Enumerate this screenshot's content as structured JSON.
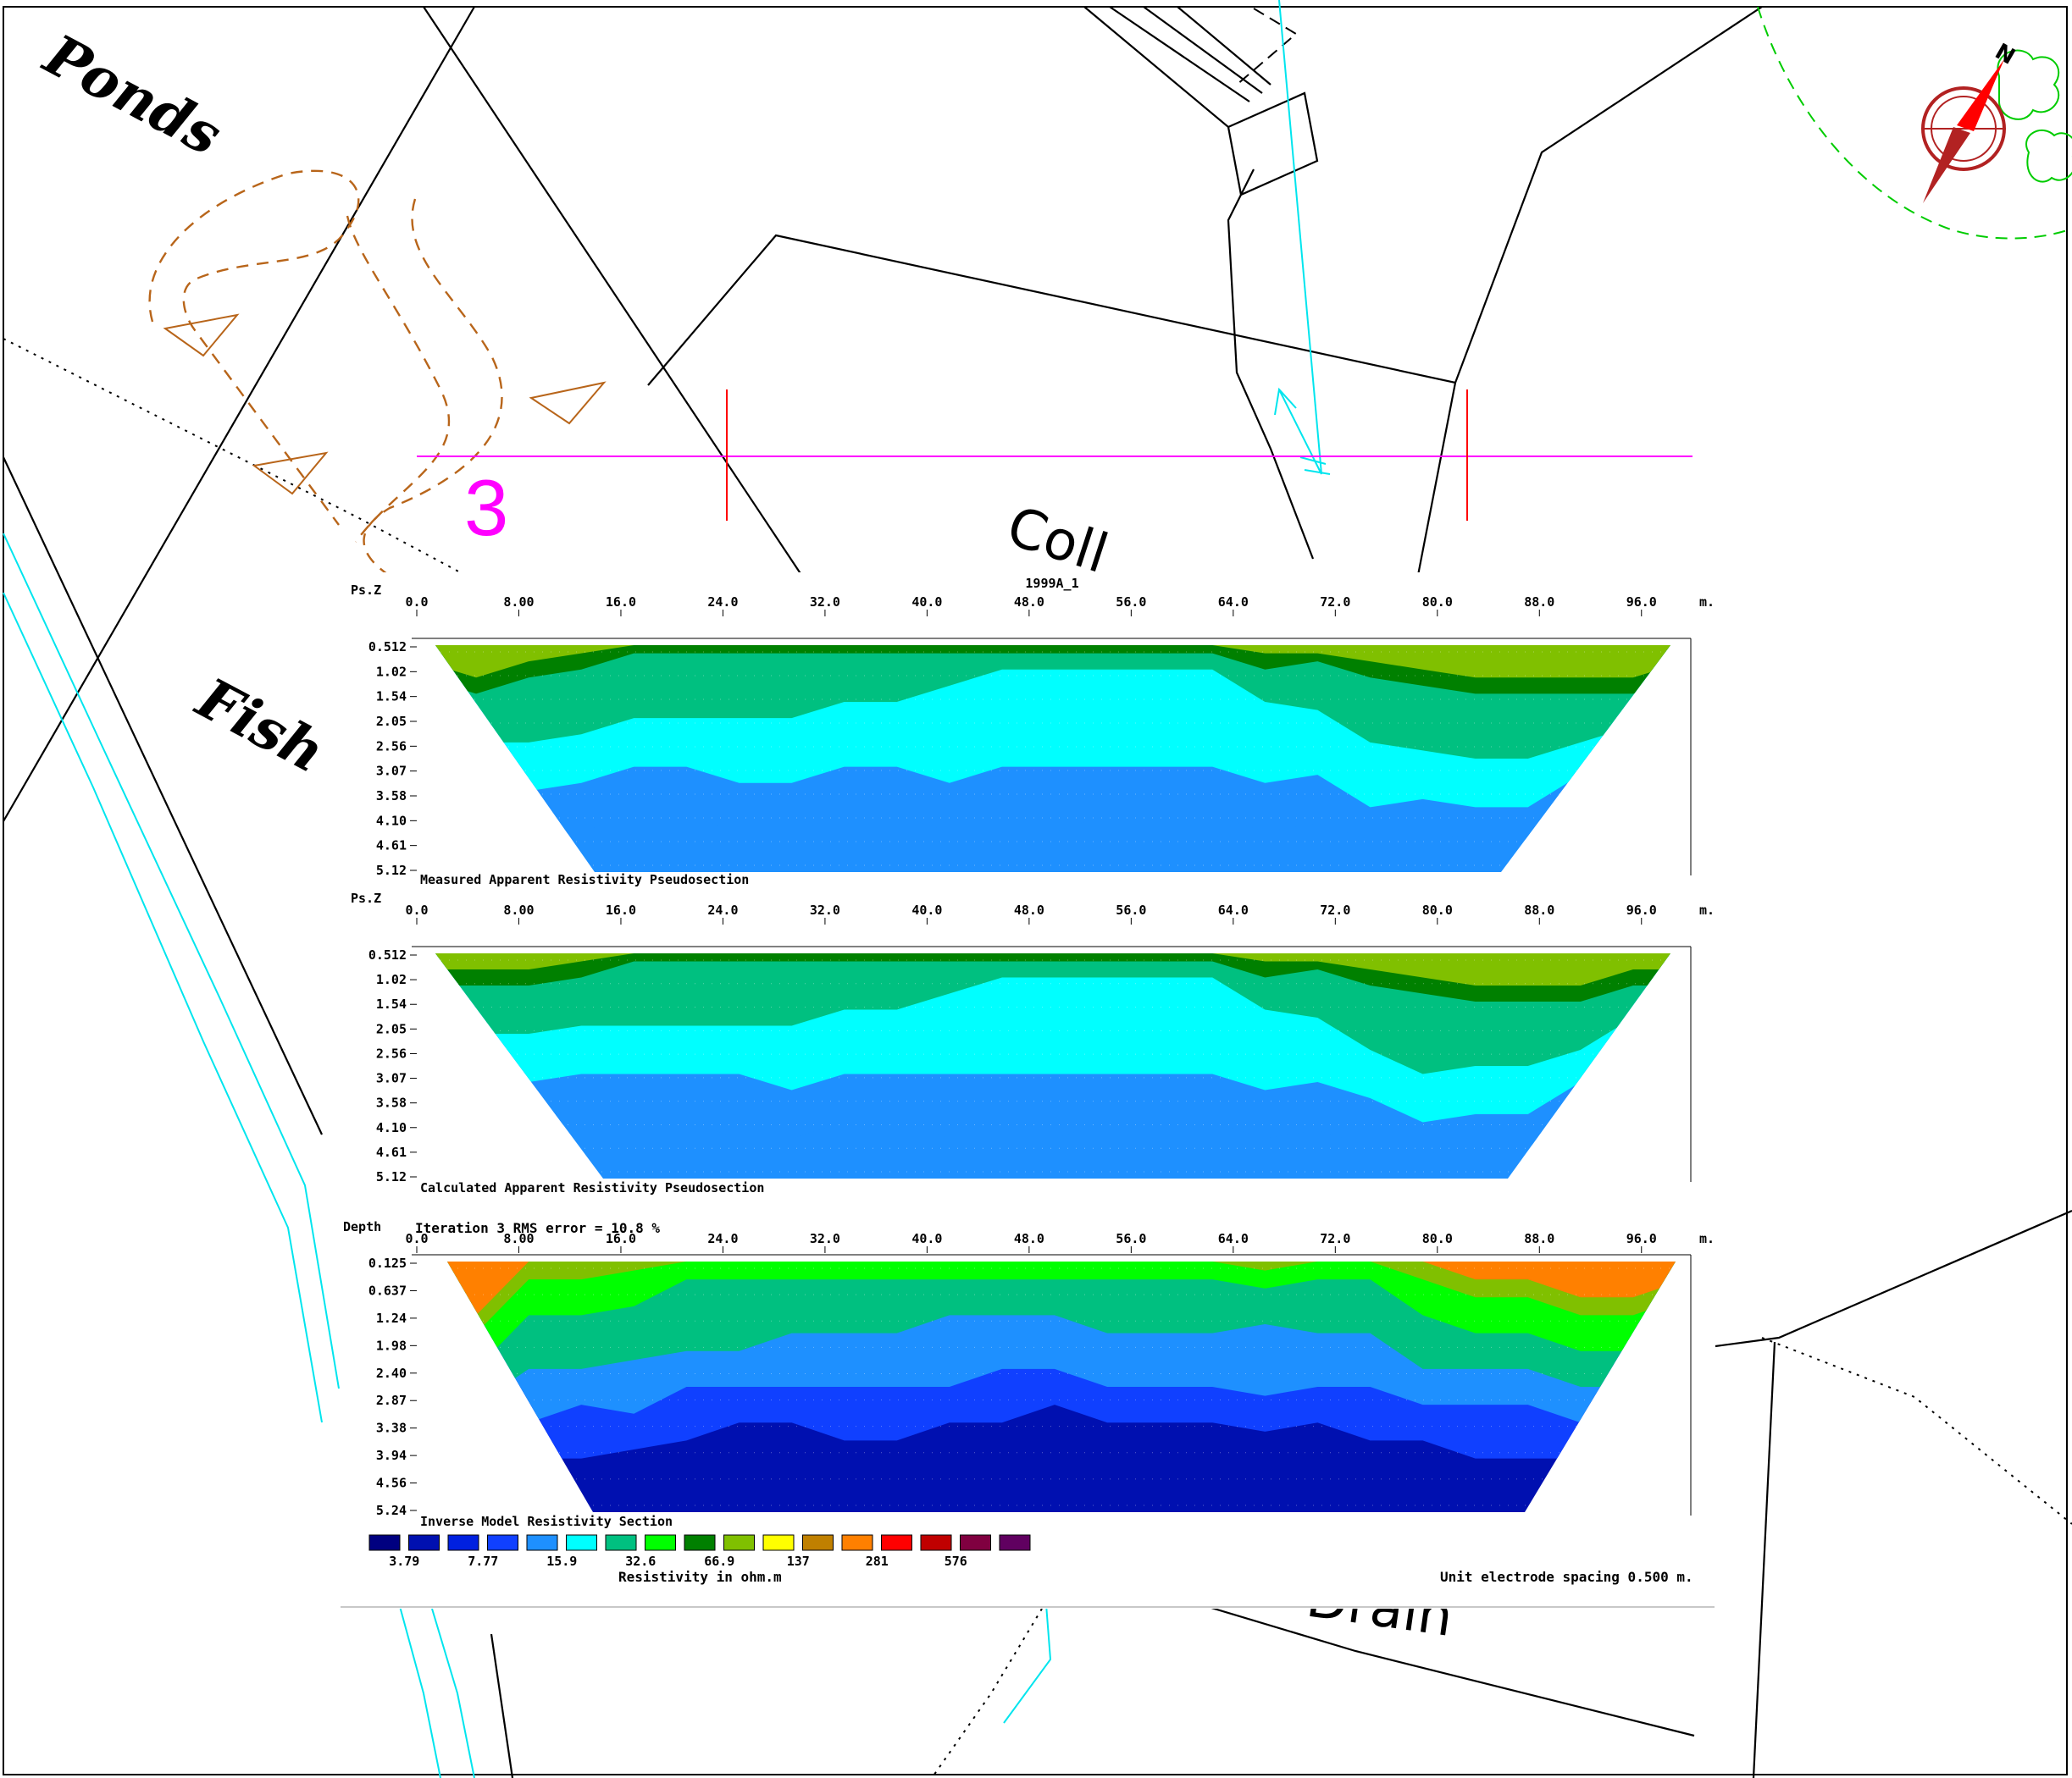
{
  "map": {
    "labels": {
      "ponds": "Ponds",
      "fish": "Fish",
      "coll": "Coll",
      "drain": "Drain",
      "line_number": "3",
      "north": "N"
    },
    "colors": {
      "traverse": "#ff00ff",
      "marker": "#ff0000",
      "water": "#00e5ee",
      "earthwork": "#b8651a",
      "tree": "#00cc00",
      "line": "#000000"
    }
  },
  "chart_data": {
    "type": "heatmap",
    "title": "1999A_1",
    "unit_note": "m.",
    "x_ticks": [
      "0.0",
      "8.00",
      "16.0",
      "24.0",
      "32.0",
      "40.0",
      "48.0",
      "56.0",
      "64.0",
      "72.0",
      "80.0",
      "88.0",
      "96.0"
    ],
    "xlim": [
      0,
      100
    ],
    "electrode_spacing": "Unit electrode spacing 0.500 m.",
    "sections": [
      {
        "name": "measured",
        "title": "Measured Apparent Resistivity Pseudosection",
        "axis_label": "Ps.Z",
        "depth_ticks": [
          "0.512",
          "1.02",
          "1.54",
          "2.05",
          "2.56",
          "3.07",
          "3.58",
          "4.10",
          "4.61",
          "5.12"
        ],
        "bands_from_top": [
          {
            "color_index": 9,
            "thickness": [
              1,
              2,
              1,
              0.5,
              0,
              0,
              0,
              0,
              0,
              0,
              0,
              0,
              0,
              0,
              0,
              0,
              0.5,
              0.5,
              1,
              1.5,
              2,
              2,
              2,
              2,
              1
            ]
          },
          {
            "color_index": 8,
            "thickness": [
              1,
              1,
              1,
              1,
              0.5,
              0.5,
              0.5,
              0.5,
              0.5,
              0.5,
              0.5,
              0.5,
              0.5,
              0.5,
              0.5,
              0.5,
              1,
              0.5,
              1,
              1,
              1,
              1,
              1,
              1,
              1
            ]
          },
          {
            "color_index": 6,
            "thickness": [
              2,
              3,
              4,
              4,
              4,
              4,
              4,
              4,
              3,
              3,
              2,
              1,
              1,
              1,
              1,
              1,
              2,
              3,
              4,
              4,
              4,
              4,
              3,
              2,
              2
            ]
          },
          {
            "color_index": 5,
            "thickness": [
              2,
              3,
              3,
              3,
              3,
              3,
              4,
              4,
              4,
              4,
              6,
              6,
              6,
              6,
              6,
              6,
              5,
              4,
              4,
              3,
              3,
              3,
              2,
              2,
              2
            ]
          },
          {
            "color_index": 4,
            "thickness": [
              3,
              3,
              3,
              3,
              3,
              3,
              3,
              3,
              3,
              3,
              3,
              4,
              4,
              3,
              3,
              3,
              3,
              3,
              2,
              2,
              2,
              2,
              2,
              2,
              3
            ]
          }
        ]
      },
      {
        "name": "calculated",
        "title": "Calculated Apparent Resistivity Pseudosection",
        "axis_label": "Ps.Z",
        "depth_ticks": [
          "0.512",
          "1.02",
          "1.54",
          "2.05",
          "2.56",
          "3.07",
          "3.58",
          "4.10",
          "4.61",
          "5.12"
        ],
        "bands_from_top": [
          {
            "color_index": 9,
            "thickness": [
              1,
              1,
              1,
              0.5,
              0,
              0,
              0,
              0,
              0,
              0,
              0,
              0,
              0,
              0,
              0,
              0,
              0.5,
              0.5,
              1,
              1.5,
              2,
              2,
              2,
              1,
              1
            ]
          },
          {
            "color_index": 8,
            "thickness": [
              1,
              1,
              1,
              1,
              0.5,
              0.5,
              0.5,
              0.5,
              0.5,
              0.5,
              0.5,
              0.5,
              0.5,
              0.5,
              0.5,
              0.5,
              1,
              0.5,
              1,
              1,
              1,
              1,
              1,
              1,
              1
            ]
          },
          {
            "color_index": 6,
            "thickness": [
              2,
              3,
              3,
              3,
              4,
              4,
              4,
              4,
              3,
              3,
              2,
              1,
              1,
              1,
              1,
              1,
              2,
              3,
              4,
              5,
              4,
              4,
              3,
              2,
              2
            ]
          },
          {
            "color_index": 5,
            "thickness": [
              2,
              2,
              3,
              3,
              3,
              3,
              3,
              4,
              4,
              4,
              5,
              6,
              6,
              6,
              6,
              6,
              5,
              4,
              3,
              3,
              3,
              3,
              2,
              2,
              2
            ]
          },
          {
            "color_index": 4,
            "thickness": [
              4,
              3,
              3,
              3,
              3,
              3,
              4,
              3,
              3,
              3,
              4,
              4,
              4,
              3,
              3,
              3,
              3,
              3,
              3,
              2,
              2,
              2,
              3,
              3,
              3
            ]
          }
        ]
      },
      {
        "name": "inverse",
        "title": "Inverse Model Resistivity Section",
        "axis_label": "Depth",
        "iteration_text": "Iteration 3 RMS error = 10.8 %",
        "depth_ticks": [
          "0.125",
          "0.637",
          "1.24",
          "1.98",
          "2.40",
          "2.87",
          "3.38",
          "3.94",
          "4.56",
          "5.24"
        ],
        "bands_from_top": [
          {
            "color_index": 12,
            "thickness": [
              1,
              3,
              0,
              0,
              0,
              0,
              0,
              0,
              0,
              0,
              0,
              0,
              0,
              0,
              0,
              0,
              0,
              0,
              0,
              0,
              1,
              1,
              2,
              2,
              1
            ]
          },
          {
            "color_index": 9,
            "thickness": [
              1,
              1,
              1,
              1,
              0.5,
              0,
              0,
              0,
              0,
              0,
              0,
              0,
              0,
              0,
              0,
              0,
              0.5,
              0,
              0,
              1,
              1,
              1,
              1,
              1,
              1
            ]
          },
          {
            "color_index": 7,
            "thickness": [
              2,
              2,
              2,
              2,
              2,
              1,
              1,
              1,
              1,
              1,
              1,
              1,
              1,
              1,
              1,
              1,
              1,
              1,
              1,
              2,
              2,
              2,
              2,
              2,
              2
            ]
          },
          {
            "color_index": 6,
            "thickness": [
              2,
              2,
              3,
              3,
              3,
              4,
              4,
              3,
              3,
              3,
              2,
              2,
              2,
              3,
              3,
              3,
              2,
              3,
              3,
              3,
              2,
              2,
              2,
              2,
              2
            ]
          },
          {
            "color_index": 4,
            "thickness": [
              3,
              3,
              3,
              2,
              3,
              2,
              2,
              3,
              3,
              3,
              4,
              3,
              3,
              3,
              3,
              3,
              4,
              3,
              3,
              2,
              2,
              2,
              2,
              2,
              2
            ]
          },
          {
            "color_index": 3,
            "thickness": [
              3,
              3,
              2,
              3,
              2,
              3,
              2,
              2,
              3,
              3,
              2,
              3,
              2,
              2,
              2,
              2,
              2,
              2,
              3,
              2,
              3,
              3,
              2,
              2,
              2
            ]
          }
        ]
      }
    ],
    "colorbar": {
      "caption": "Resistivity in ohm.m",
      "colors": [
        "#000080",
        "#0010b0",
        "#0020e0",
        "#1040ff",
        "#1e90ff",
        "#00ffff",
        "#00c080",
        "#00ff00",
        "#008000",
        "#80c000",
        "#ffff00",
        "#c08000",
        "#ff8000",
        "#ff0000",
        "#c00000",
        "#800040",
        "#600060"
      ],
      "labels": [
        {
          "after_box": 1,
          "text": "3.79"
        },
        {
          "after_box": 3,
          "text": "7.77"
        },
        {
          "after_box": 5,
          "text": "15.9"
        },
        {
          "after_box": 7,
          "text": "32.6"
        },
        {
          "after_box": 9,
          "text": "66.9"
        },
        {
          "after_box": 11,
          "text": "137"
        },
        {
          "after_box": 13,
          "text": "281"
        },
        {
          "after_box": 15,
          "text": "576"
        }
      ]
    }
  }
}
